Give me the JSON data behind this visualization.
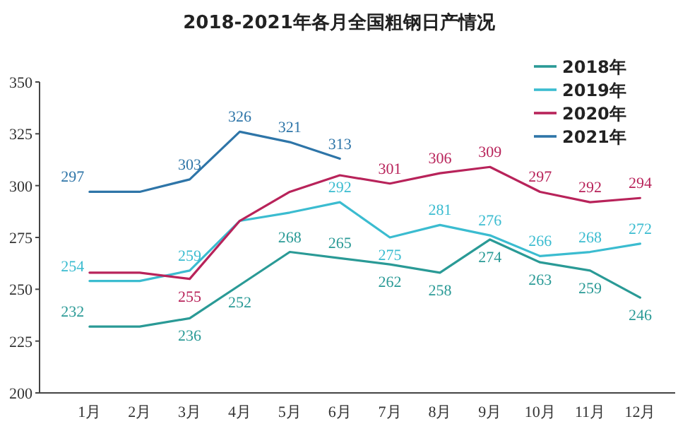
{
  "chart_data": {
    "type": "line",
    "title": "2018-2021年各月全国粗钢日产情况",
    "categories": [
      "1月",
      "2月",
      "3月",
      "4月",
      "5月",
      "6月",
      "7月",
      "8月",
      "9月",
      "10月",
      "11月",
      "12月"
    ],
    "ylim": [
      200,
      350
    ],
    "yticks": [
      200,
      225,
      250,
      275,
      300,
      325,
      350
    ],
    "grid": false,
    "legend": "top right",
    "marker": "none",
    "line_style": "solid",
    "series": [
      {
        "name": "2018年",
        "color": "#2a9a96",
        "values": [
          232,
          232,
          236,
          252,
          268,
          265,
          262,
          258,
          274,
          263,
          259,
          246
        ],
        "value_labels": [
          "232",
          null,
          "236",
          "252",
          "268",
          "265",
          "262",
          "258",
          "274",
          "263",
          "259",
          "246"
        ]
      },
      {
        "name": "2019年",
        "color": "#3bbcd0",
        "values": [
          254,
          254,
          259,
          283,
          287,
          292,
          275,
          281,
          276,
          266,
          268,
          272
        ],
        "value_labels": [
          "254",
          null,
          "259",
          null,
          null,
          "292",
          "275",
          "281",
          "276",
          "266",
          "268",
          "272"
        ]
      },
      {
        "name": "2020年",
        "color": "#b8235a",
        "values": [
          258,
          258,
          255,
          283,
          297,
          305,
          301,
          306,
          309,
          297,
          292,
          294
        ],
        "value_labels": [
          null,
          null,
          "255",
          null,
          null,
          null,
          "301",
          "306",
          "309",
          "297",
          "292",
          "294"
        ]
      },
      {
        "name": "2021年",
        "color": "#2e75a8",
        "values": [
          297,
          297,
          303,
          326,
          321,
          313,
          null,
          null,
          null,
          null,
          null,
          null
        ],
        "value_labels": [
          "297",
          null,
          "303",
          "326",
          "321",
          "313",
          null,
          null,
          null,
          null,
          null,
          null
        ]
      }
    ]
  }
}
